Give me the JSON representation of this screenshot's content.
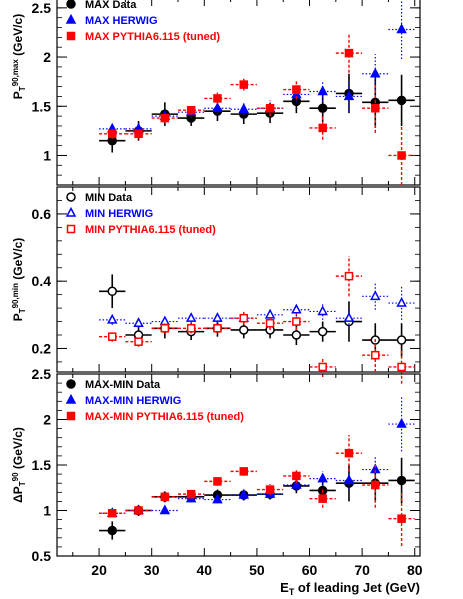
{
  "colors": {
    "data": "#000000",
    "herwig": "#0000ff",
    "pythia": "#ff0000",
    "axis": "#000000"
  },
  "xlabel": {
    "main": "E",
    "sub": "T",
    "rest": " of leading Jet (GeV)"
  },
  "x_ticks": [
    "20",
    "30",
    "40",
    "50",
    "60",
    "70",
    "80"
  ],
  "chart_data": [
    {
      "type": "scatter",
      "ylabel": {
        "main": "P",
        "sub": "T",
        "sup": "90,max",
        "rest": " (GeV/c)"
      },
      "xlim": [
        12,
        81
      ],
      "ylim": [
        0.7,
        2.6
      ],
      "y_ticks": [
        "1",
        "1.5",
        "2",
        "2.5"
      ],
      "legend": [
        {
          "label": "MAX Data",
          "marker": "filled-circle",
          "color": "#000000"
        },
        {
          "label": "MAX HERWIG",
          "marker": "filled-triangle",
          "color": "#0000ff"
        },
        {
          "label": "MAX PYTHIA6.115 (tuned)",
          "marker": "filled-square",
          "color": "#ff0000"
        }
      ],
      "x": [
        22.5,
        27.5,
        32.5,
        37.5,
        42.5,
        47.5,
        52.5,
        57.5,
        62.5,
        67.5,
        72.5,
        77.5
      ],
      "series": [
        {
          "name": "MAX Data",
          "values": [
            1.15,
            1.25,
            1.42,
            1.38,
            1.45,
            1.42,
            1.43,
            1.55,
            1.48,
            1.63,
            1.54,
            1.56
          ],
          "err": [
            0.12,
            0.1,
            0.12,
            0.08,
            0.1,
            0.1,
            0.1,
            0.12,
            0.14,
            0.2,
            0.26,
            0.26
          ]
        },
        {
          "name": "MAX HERWIG",
          "values": [
            1.27,
            1.27,
            1.4,
            1.44,
            1.48,
            1.47,
            1.48,
            1.62,
            1.65,
            1.6,
            1.83,
            2.28
          ],
          "err": [
            0.05,
            0.05,
            0.05,
            0.06,
            0.06,
            0.06,
            0.06,
            0.08,
            0.1,
            0.15,
            0.2,
            0.3
          ]
        },
        {
          "name": "MAX PYTHIA6.115 (tuned)",
          "values": [
            1.22,
            1.22,
            1.38,
            1.46,
            1.58,
            1.72,
            1.48,
            1.67,
            1.28,
            2.04,
            1.48,
            1.0
          ],
          "err": [
            0.05,
            0.05,
            0.05,
            0.05,
            0.06,
            0.06,
            0.08,
            0.1,
            0.12,
            0.2,
            0.25,
            0.3
          ]
        }
      ]
    },
    {
      "type": "scatter",
      "ylabel": {
        "main": "P",
        "sub": "T",
        "sup": "90,min",
        "rest": " (GeV/c)"
      },
      "xlim": [
        12,
        81
      ],
      "ylim": [
        0.13,
        0.68
      ],
      "y_ticks": [
        "0.2",
        "0.4",
        "0.6"
      ],
      "legend": [
        {
          "label": "MIN Data",
          "marker": "open-circle",
          "color": "#000000"
        },
        {
          "label": "MIN HERWIG",
          "marker": "open-triangle",
          "color": "#0000ff"
        },
        {
          "label": "MIN PYTHIA6.115 (tuned)",
          "marker": "open-square",
          "color": "#ff0000"
        }
      ],
      "x": [
        22.5,
        27.5,
        32.5,
        37.5,
        42.5,
        47.5,
        52.5,
        57.5,
        62.5,
        67.5,
        72.5,
        77.5
      ],
      "series": [
        {
          "name": "MIN Data",
          "values": [
            0.37,
            0.24,
            0.26,
            0.25,
            0.26,
            0.255,
            0.255,
            0.24,
            0.25,
            0.28,
            0.225,
            0.225
          ],
          "err": [
            0.05,
            0.03,
            0.03,
            0.025,
            0.025,
            0.025,
            0.025,
            0.03,
            0.03,
            0.06,
            0.05,
            0.05
          ]
        },
        {
          "name": "MIN HERWIG",
          "values": [
            0.285,
            0.275,
            0.28,
            0.29,
            0.29,
            0.29,
            0.3,
            0.315,
            0.31,
            0.29,
            0.355,
            0.335
          ],
          "err": [
            0.015,
            0.015,
            0.015,
            0.015,
            0.015,
            0.015,
            0.02,
            0.02,
            0.025,
            0.03,
            0.04,
            0.05
          ]
        },
        {
          "name": "MIN PYTHIA6.115 (tuned)",
          "values": [
            0.235,
            0.22,
            0.26,
            0.26,
            0.26,
            0.29,
            0.275,
            0.28,
            0.145,
            0.415,
            0.18,
            0.145
          ],
          "err": [
            0.015,
            0.015,
            0.015,
            0.015,
            0.015,
            0.02,
            0.02,
            0.025,
            0.03,
            0.06,
            0.05,
            0.05
          ]
        }
      ]
    },
    {
      "type": "scatter",
      "ylabel": {
        "main": "ΔP",
        "sub": "T",
        "sup": "90",
        "rest": " (GeV/c)"
      },
      "xlim": [
        12,
        81
      ],
      "ylim": [
        0.5,
        2.5
      ],
      "y_ticks": [
        "0.5",
        "1",
        "1.5",
        "2",
        "2.5"
      ],
      "legend": [
        {
          "label": "MAX-MIN Data",
          "marker": "filled-circle",
          "color": "#000000"
        },
        {
          "label": "MAX-MIN HERWIG",
          "marker": "filled-triangle",
          "color": "#0000ff"
        },
        {
          "label": "MAX-MIN PYTHIA6.115 (tuned)",
          "marker": "filled-square",
          "color": "#ff0000"
        }
      ],
      "x": [
        22.5,
        27.5,
        32.5,
        37.5,
        42.5,
        47.5,
        52.5,
        57.5,
        62.5,
        67.5,
        72.5,
        77.5
      ],
      "series": [
        {
          "name": "MAX-MIN Data",
          "values": [
            0.78,
            1.0,
            1.15,
            1.15,
            1.17,
            1.17,
            1.18,
            1.27,
            1.22,
            1.3,
            1.3,
            1.33
          ],
          "err": [
            0.1,
            0.06,
            0.06,
            0.05,
            0.06,
            0.06,
            0.06,
            0.08,
            0.1,
            0.2,
            0.2,
            0.25
          ]
        },
        {
          "name": "MAX-MIN HERWIG",
          "values": [
            0.97,
            1.0,
            1.0,
            1.13,
            1.12,
            1.17,
            1.18,
            1.28,
            1.35,
            1.33,
            1.45,
            1.95
          ],
          "err": [
            0.03,
            0.03,
            0.03,
            0.04,
            0.04,
            0.04,
            0.05,
            0.06,
            0.08,
            0.1,
            0.15,
            0.3
          ]
        },
        {
          "name": "MAX-MIN PYTHIA6.115 (tuned)",
          "values": [
            0.97,
            1.0,
            1.15,
            1.18,
            1.32,
            1.43,
            1.23,
            1.38,
            1.13,
            1.63,
            1.28,
            0.91
          ],
          "err": [
            0.04,
            0.04,
            0.05,
            0.05,
            0.05,
            0.05,
            0.06,
            0.08,
            0.1,
            0.2,
            0.25,
            0.3
          ]
        }
      ]
    }
  ]
}
